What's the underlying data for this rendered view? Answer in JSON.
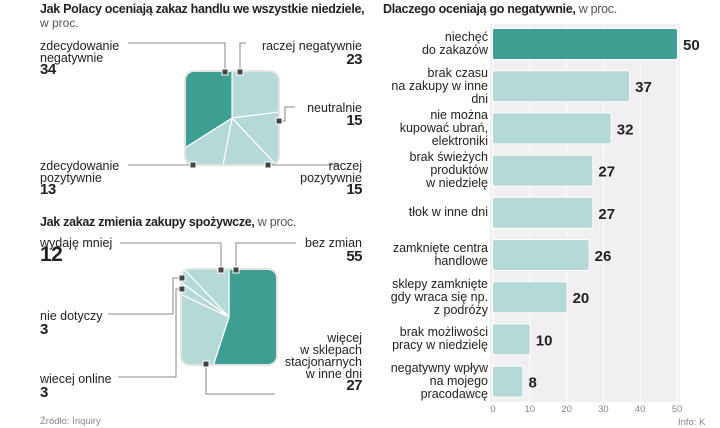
{
  "chart_data": [
    {
      "type": "pie",
      "title": "Jak Polacy oceniają zakaz handlu we wszystkie niedziele,",
      "subtitle": "w proc.",
      "slices": [
        {
          "label": "raczej negatywnie",
          "value": 23,
          "color": "#b5d9d6"
        },
        {
          "label": "neutralnie",
          "value": 15,
          "color": "#b5d9d6"
        },
        {
          "label": "raczej pozytywnie",
          "value": 15,
          "color": "#b5d9d6"
        },
        {
          "label": "zdecydowanie pozytywnie",
          "value": 13,
          "color": "#b5d9d6"
        },
        {
          "label": "zdecydowanie negatywnie",
          "value": 34,
          "color": "#3f9e92"
        }
      ]
    },
    {
      "type": "pie",
      "title": "Jak zakaz zmienia zakupy spożywcze,",
      "subtitle": "w proc.",
      "slices": [
        {
          "label": "bez zmian",
          "value": 55,
          "color": "#3f9e92"
        },
        {
          "label": "więcej w sklepach stacjonarnych w inne dni",
          "value": 27,
          "color": "#b5d9d6"
        },
        {
          "label": "wiecej online",
          "value": 3,
          "color": "#b5d9d6"
        },
        {
          "label": "nie dotyczy",
          "value": 3,
          "color": "#b5d9d6"
        },
        {
          "label": "wydaję mniej",
          "value": 12,
          "color": "#b5d9d6"
        }
      ]
    },
    {
      "type": "bar",
      "orientation": "horizontal",
      "title": "Dlaczego oceniają go negatywnie,",
      "subtitle": "w proc.",
      "categories": [
        "niechęć do zakazów",
        "brak czasu na zakupy w inne dni",
        "nie można kupować ubrań, elektroniki",
        "brak świeżych produktów w niedzielę",
        "tłok w inne dni",
        "zamknięte centra handlowe",
        "sklepy zamknięte gdy wraca się np. z podróży",
        "brak możliwości pracy w niedzielę",
        "negatywny wpływ na mojego pracodawcę"
      ],
      "values": [
        50,
        37,
        32,
        27,
        27,
        26,
        20,
        10,
        8
      ],
      "xlim": [
        0,
        50
      ],
      "xticks": [
        "0",
        "10",
        "20",
        "30",
        "40",
        "50"
      ],
      "highlight_color": "#3f9e92",
      "bar_color": "#b5d9d6"
    }
  ],
  "labels": {
    "p1": {
      "zn": [
        "zdecydowanie",
        "negatywnie"
      ],
      "rn": "raczej negatywnie",
      "ne": "neutralnie",
      "zp": [
        "zdecydowanie",
        "pozytywnie"
      ],
      "rp": [
        "raczej",
        "pozytywnie"
      ]
    },
    "p2": {
      "wm": "wydaję mniej",
      "bz": "bez zmian",
      "nd": "nie dotyczy",
      "wo": "wiecej online",
      "ws": [
        "więcej",
        "w sklepach",
        "stacjonarnych",
        "w inne dni"
      ]
    },
    "bars": [
      [
        "niechęć",
        "do zakazów"
      ],
      [
        "brak czasu",
        "na zakupy w inne",
        "dni"
      ],
      [
        "nie można",
        "kupować ubrań,",
        "elektroniki"
      ],
      [
        "brak świeżych",
        "produktów",
        "w niedzielę"
      ],
      [
        "tłok w inne dni"
      ],
      [
        "zamknięte centra",
        "handlowe"
      ],
      [
        "sklepy zamknięte",
        "gdy wraca się np.",
        "z podróży"
      ],
      [
        "brak możliwości",
        "pracy w niedzielę"
      ],
      [
        "negatywny wpływ",
        "na mojego",
        "pracodawcę"
      ]
    ]
  },
  "footer": {
    "source": "Źródło: Inquiry",
    "credit": "Info: K"
  }
}
